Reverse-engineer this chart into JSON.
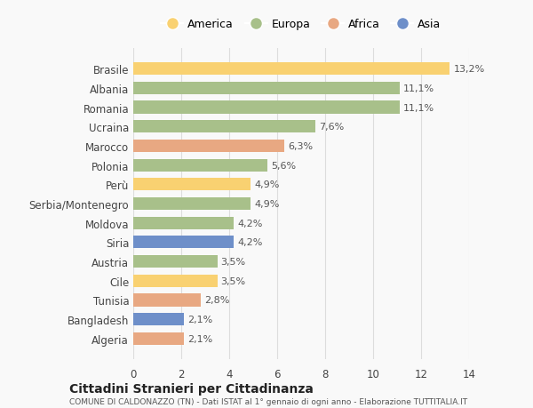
{
  "categories": [
    "Brasile",
    "Albania",
    "Romania",
    "Ucraina",
    "Marocco",
    "Polonia",
    "Perù",
    "Serbia/Montenegro",
    "Moldova",
    "Siria",
    "Austria",
    "Cile",
    "Tunisia",
    "Bangladesh",
    "Algeria"
  ],
  "values": [
    13.2,
    11.1,
    11.1,
    7.6,
    6.3,
    5.6,
    4.9,
    4.9,
    4.2,
    4.2,
    3.5,
    3.5,
    2.8,
    2.1,
    2.1
  ],
  "labels": [
    "13,2%",
    "11,1%",
    "11,1%",
    "7,6%",
    "6,3%",
    "5,6%",
    "4,9%",
    "4,9%",
    "4,2%",
    "4,2%",
    "3,5%",
    "3,5%",
    "2,8%",
    "2,1%",
    "2,1%"
  ],
  "continents": [
    "America",
    "Europa",
    "Europa",
    "Europa",
    "Africa",
    "Europa",
    "America",
    "Europa",
    "Europa",
    "Asia",
    "Europa",
    "America",
    "Africa",
    "Asia",
    "Africa"
  ],
  "colors": {
    "America": "#F9D171",
    "Europa": "#A8C08A",
    "Africa": "#E8A882",
    "Asia": "#6E8FC9"
  },
  "legend_order": [
    "America",
    "Europa",
    "Africa",
    "Asia"
  ],
  "xlim": [
    0,
    14
  ],
  "xticks": [
    0,
    2,
    4,
    6,
    8,
    10,
    12,
    14
  ],
  "title": "Cittadini Stranieri per Cittadinanza",
  "subtitle": "COMUNE DI CALDONAZZO (TN) - Dati ISTAT al 1° gennaio di ogni anno - Elaborazione TUTTITALIA.IT",
  "background_color": "#f9f9f9",
  "grid_color": "#dddddd"
}
